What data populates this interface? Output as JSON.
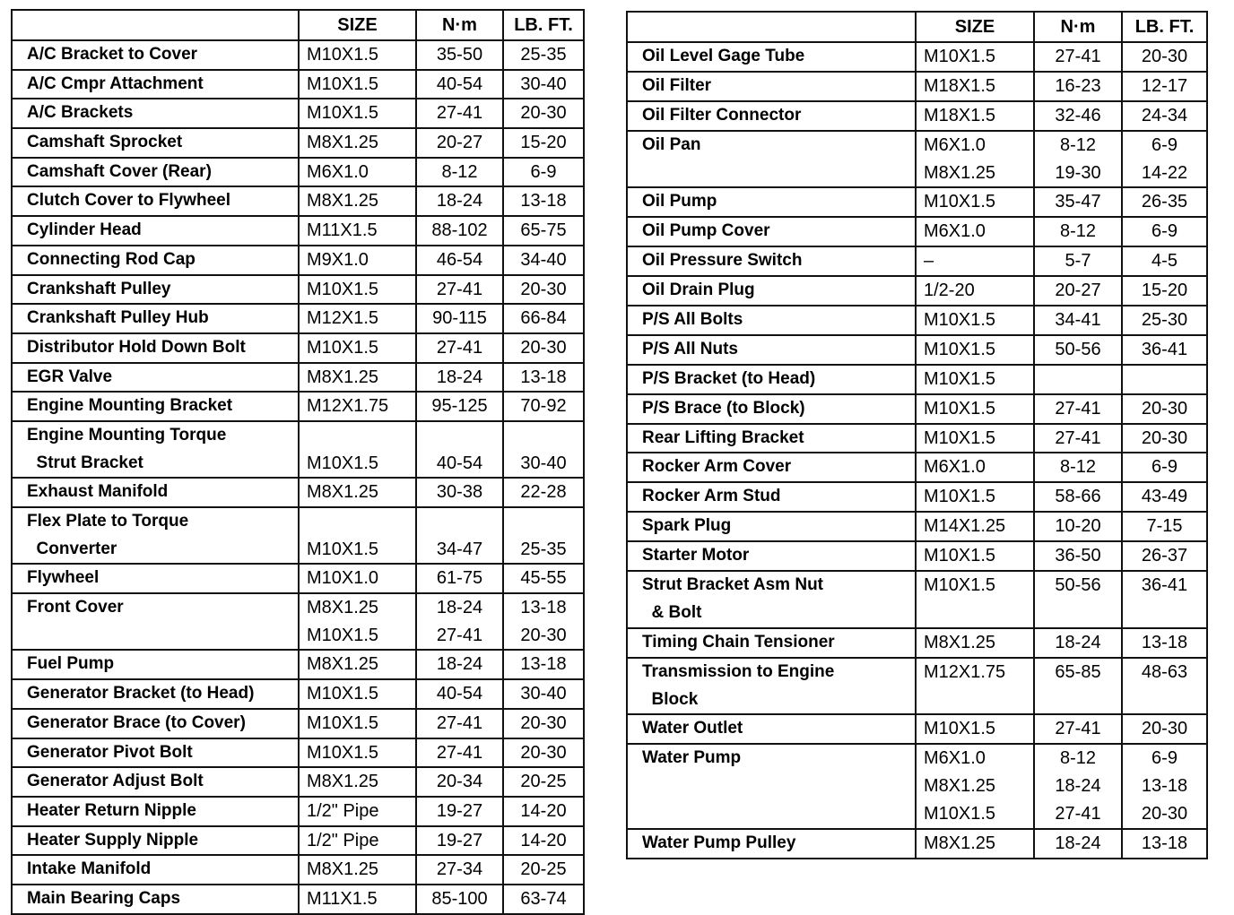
{
  "header": {
    "name": "",
    "size": "SIZE",
    "nm": "N·m",
    "lbft": "LB. FT."
  },
  "left_table": [
    {
      "name": [
        "A/C Bracket to Cover"
      ],
      "size": [
        "M10X1.5"
      ],
      "nm": [
        "35-50"
      ],
      "lbft": [
        "25-35"
      ]
    },
    {
      "name": [
        "A/C Cmpr Attachment"
      ],
      "size": [
        "M10X1.5"
      ],
      "nm": [
        "40-54"
      ],
      "lbft": [
        "30-40"
      ]
    },
    {
      "name": [
        "A/C Brackets"
      ],
      "size": [
        "M10X1.5"
      ],
      "nm": [
        "27-41"
      ],
      "lbft": [
        "20-30"
      ]
    },
    {
      "name": [
        "Camshaft Sprocket"
      ],
      "size": [
        "M8X1.25"
      ],
      "nm": [
        "20-27"
      ],
      "lbft": [
        "15-20"
      ]
    },
    {
      "name": [
        "Camshaft Cover (Rear)"
      ],
      "size": [
        "M6X1.0"
      ],
      "nm": [
        "8-12"
      ],
      "lbft": [
        "6-9"
      ]
    },
    {
      "name": [
        "Clutch Cover to Flywheel"
      ],
      "size": [
        "M8X1.25"
      ],
      "nm": [
        "18-24"
      ],
      "lbft": [
        "13-18"
      ]
    },
    {
      "name": [
        "Cylinder Head"
      ],
      "size": [
        "M11X1.5"
      ],
      "nm": [
        "88-102"
      ],
      "lbft": [
        "65-75"
      ]
    },
    {
      "name": [
        "Connecting Rod Cap"
      ],
      "size": [
        "M9X1.0"
      ],
      "nm": [
        "46-54"
      ],
      "lbft": [
        "34-40"
      ]
    },
    {
      "name": [
        "Crankshaft Pulley"
      ],
      "size": [
        "M10X1.5"
      ],
      "nm": [
        "27-41"
      ],
      "lbft": [
        "20-30"
      ]
    },
    {
      "name": [
        "Crankshaft Pulley Hub"
      ],
      "size": [
        "M12X1.5"
      ],
      "nm": [
        "90-115"
      ],
      "lbft": [
        "66-84"
      ]
    },
    {
      "name": [
        "Distributor Hold Down Bolt"
      ],
      "size": [
        "M10X1.5"
      ],
      "nm": [
        "27-41"
      ],
      "lbft": [
        "20-30"
      ]
    },
    {
      "name": [
        "EGR Valve"
      ],
      "size": [
        "M8X1.25"
      ],
      "nm": [
        "18-24"
      ],
      "lbft": [
        "13-18"
      ]
    },
    {
      "name": [
        "Engine Mounting Bracket"
      ],
      "size": [
        "M12X1.75"
      ],
      "nm": [
        "95-125"
      ],
      "lbft": [
        "70-92"
      ]
    },
    {
      "name": [
        "Engine Mounting Torque",
        "  Strut Bracket"
      ],
      "size": [
        "",
        "M10X1.5"
      ],
      "nm": [
        "",
        "40-54"
      ],
      "lbft": [
        "",
        "30-40"
      ]
    },
    {
      "name": [
        "Exhaust Manifold"
      ],
      "size": [
        "M8X1.25"
      ],
      "nm": [
        "30-38"
      ],
      "lbft": [
        "22-28"
      ]
    },
    {
      "name": [
        "Flex Plate to Torque",
        "  Converter"
      ],
      "size": [
        "",
        "M10X1.5"
      ],
      "nm": [
        "",
        "34-47"
      ],
      "lbft": [
        "",
        "25-35"
      ]
    },
    {
      "name": [
        "Flywheel"
      ],
      "size": [
        "M10X1.0"
      ],
      "nm": [
        "61-75"
      ],
      "lbft": [
        "45-55"
      ]
    },
    {
      "name": [
        "Front Cover",
        ""
      ],
      "size": [
        "M8X1.25",
        "M10X1.5"
      ],
      "nm": [
        "18-24",
        "27-41"
      ],
      "lbft": [
        "13-18",
        "20-30"
      ]
    },
    {
      "name": [
        "Fuel Pump"
      ],
      "size": [
        "M8X1.25"
      ],
      "nm": [
        "18-24"
      ],
      "lbft": [
        "13-18"
      ]
    },
    {
      "name": [
        "Generator Bracket (to Head)"
      ],
      "size": [
        "M10X1.5"
      ],
      "nm": [
        "40-54"
      ],
      "lbft": [
        "30-40"
      ]
    },
    {
      "name": [
        "Generator Brace (to Cover)"
      ],
      "size": [
        "M10X1.5"
      ],
      "nm": [
        "27-41"
      ],
      "lbft": [
        "20-30"
      ]
    },
    {
      "name": [
        "Generator Pivot Bolt"
      ],
      "size": [
        "M10X1.5"
      ],
      "nm": [
        "27-41"
      ],
      "lbft": [
        "20-30"
      ]
    },
    {
      "name": [
        "Generator Adjust Bolt"
      ],
      "size": [
        "M8X1.25"
      ],
      "nm": [
        "20-34"
      ],
      "lbft": [
        "20-25"
      ]
    },
    {
      "name": [
        "Heater Return Nipple"
      ],
      "size": [
        "1/2\" Pipe"
      ],
      "nm": [
        "19-27"
      ],
      "lbft": [
        "14-20"
      ]
    },
    {
      "name": [
        "Heater Supply Nipple"
      ],
      "size": [
        "1/2\" Pipe"
      ],
      "nm": [
        "19-27"
      ],
      "lbft": [
        "14-20"
      ]
    },
    {
      "name": [
        "Intake Manifold"
      ],
      "size": [
        "M8X1.25"
      ],
      "nm": [
        "27-34"
      ],
      "lbft": [
        "20-25"
      ]
    },
    {
      "name": [
        "Main Bearing Caps"
      ],
      "size": [
        "M11X1.5"
      ],
      "nm": [
        "85-100"
      ],
      "lbft": [
        "63-74"
      ]
    }
  ],
  "right_table": [
    {
      "name": [
        "Oil Level Gage Tube"
      ],
      "size": [
        "M10X1.5"
      ],
      "nm": [
        "27-41"
      ],
      "lbft": [
        "20-30"
      ]
    },
    {
      "name": [
        "Oil Filter"
      ],
      "size": [
        "M18X1.5"
      ],
      "nm": [
        "16-23"
      ],
      "lbft": [
        "12-17"
      ]
    },
    {
      "name": [
        "Oil Filter Connector"
      ],
      "size": [
        "M18X1.5"
      ],
      "nm": [
        "32-46"
      ],
      "lbft": [
        "24-34"
      ]
    },
    {
      "name": [
        "Oil Pan",
        ""
      ],
      "size": [
        "M6X1.0",
        "M8X1.25"
      ],
      "nm": [
        "8-12",
        "19-30"
      ],
      "lbft": [
        "6-9",
        "14-22"
      ]
    },
    {
      "name": [
        "Oil Pump"
      ],
      "size": [
        "M10X1.5"
      ],
      "nm": [
        "35-47"
      ],
      "lbft": [
        "26-35"
      ]
    },
    {
      "name": [
        "Oil Pump Cover"
      ],
      "size": [
        "M6X1.0"
      ],
      "nm": [
        "8-12"
      ],
      "lbft": [
        "6-9"
      ]
    },
    {
      "name": [
        "Oil Pressure Switch"
      ],
      "size": [
        "–"
      ],
      "nm": [
        "5-7"
      ],
      "lbft": [
        "4-5"
      ]
    },
    {
      "name": [
        "Oil Drain Plug"
      ],
      "size": [
        "1/2-20"
      ],
      "nm": [
        "20-27"
      ],
      "lbft": [
        "15-20"
      ]
    },
    {
      "name": [
        "P/S All Bolts"
      ],
      "size": [
        "M10X1.5"
      ],
      "nm": [
        "34-41"
      ],
      "lbft": [
        "25-30"
      ]
    },
    {
      "name": [
        "P/S All Nuts"
      ],
      "size": [
        "M10X1.5"
      ],
      "nm": [
        "50-56"
      ],
      "lbft": [
        "36-41"
      ]
    },
    {
      "name": [
        "P/S Bracket (to Head)"
      ],
      "size": [
        "M10X1.5"
      ],
      "nm": [
        ""
      ],
      "lbft": [
        ""
      ]
    },
    {
      "name": [
        "P/S Brace (to Block)"
      ],
      "size": [
        "M10X1.5"
      ],
      "nm": [
        "27-41"
      ],
      "lbft": [
        "20-30"
      ]
    },
    {
      "name": [
        "Rear Lifting Bracket"
      ],
      "size": [
        "M10X1.5"
      ],
      "nm": [
        "27-41"
      ],
      "lbft": [
        "20-30"
      ]
    },
    {
      "name": [
        "Rocker Arm Cover"
      ],
      "size": [
        "M6X1.0"
      ],
      "nm": [
        "8-12"
      ],
      "lbft": [
        "6-9"
      ]
    },
    {
      "name": [
        "Rocker Arm Stud"
      ],
      "size": [
        "M10X1.5"
      ],
      "nm": [
        "58-66"
      ],
      "lbft": [
        "43-49"
      ]
    },
    {
      "name": [
        "Spark Plug"
      ],
      "size": [
        "M14X1.25"
      ],
      "nm": [
        "10-20"
      ],
      "lbft": [
        "7-15"
      ]
    },
    {
      "name": [
        "Starter Motor"
      ],
      "size": [
        "M10X1.5"
      ],
      "nm": [
        "36-50"
      ],
      "lbft": [
        "26-37"
      ]
    },
    {
      "name": [
        "Strut Bracket Asm Nut",
        "  & Bolt"
      ],
      "size": [
        "M10X1.5",
        ""
      ],
      "nm": [
        "50-56",
        ""
      ],
      "lbft": [
        "36-41",
        ""
      ]
    },
    {
      "name": [
        "Timing Chain Tensioner"
      ],
      "size": [
        "M8X1.25"
      ],
      "nm": [
        "18-24"
      ],
      "lbft": [
        "13-18"
      ]
    },
    {
      "name": [
        "Transmission to Engine",
        "  Block"
      ],
      "size": [
        "M12X1.75",
        ""
      ],
      "nm": [
        "65-85",
        ""
      ],
      "lbft": [
        "48-63",
        ""
      ]
    },
    {
      "name": [
        "Water Outlet"
      ],
      "size": [
        "M10X1.5"
      ],
      "nm": [
        "27-41"
      ],
      "lbft": [
        "20-30"
      ]
    },
    {
      "name": [
        "Water Pump",
        "",
        ""
      ],
      "size": [
        "M6X1.0",
        "M8X1.25",
        "M10X1.5"
      ],
      "nm": [
        "8-12",
        "18-24",
        "27-41"
      ],
      "lbft": [
        "6-9",
        "13-18",
        "20-30"
      ]
    },
    {
      "name": [
        "Water Pump Pulley"
      ],
      "size": [
        "M8X1.25"
      ],
      "nm": [
        "18-24"
      ],
      "lbft": [
        "13-18"
      ]
    }
  ]
}
